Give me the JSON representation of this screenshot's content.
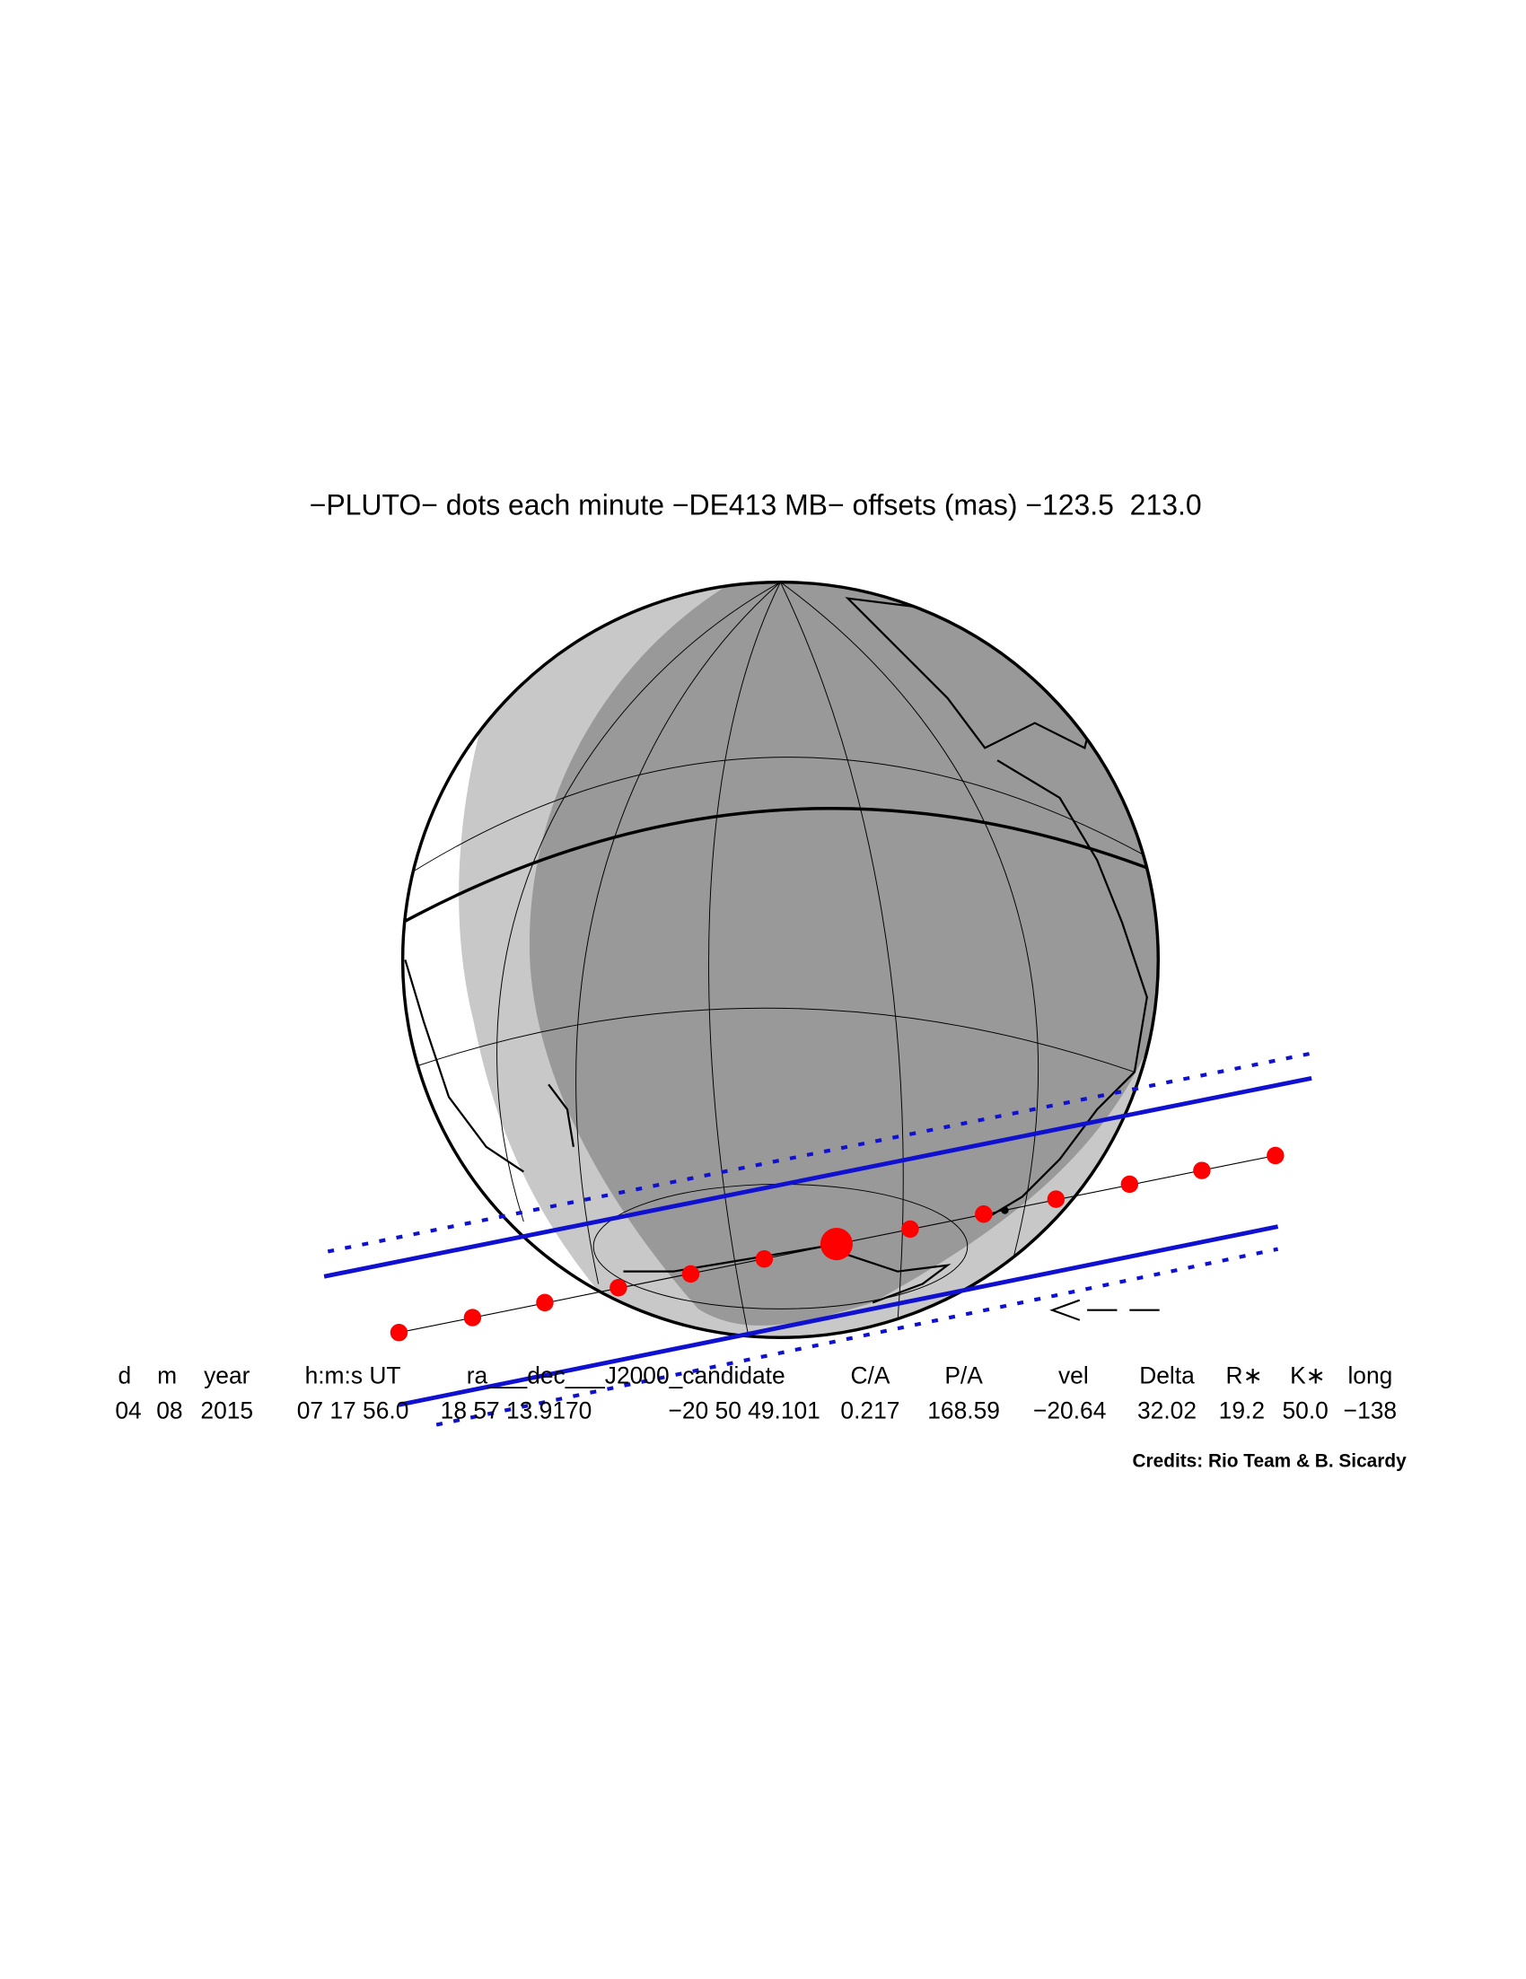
{
  "title": "−PLUTO− dots each minute −DE413 MB− offsets (mas) −123.5  213.0",
  "table": {
    "header": [
      "d",
      "m",
      "year",
      "h:m:s UT",
      "ra___dec___J2000_candidate",
      "C/A",
      "P/A",
      "vel",
      "Delta",
      "R∗",
      "K∗",
      "long"
    ],
    "row": [
      "04",
      "08",
      "2015",
      "07 17 56.0",
      "18 57 13.9170",
      "−20 50 49.101",
      "0.217",
      "168.59",
      "−20.64",
      "32.02",
      "19.2",
      "50.0",
      "−138"
    ]
  },
  "credits": "Credits: Rio Team & B. Sicardy"
}
